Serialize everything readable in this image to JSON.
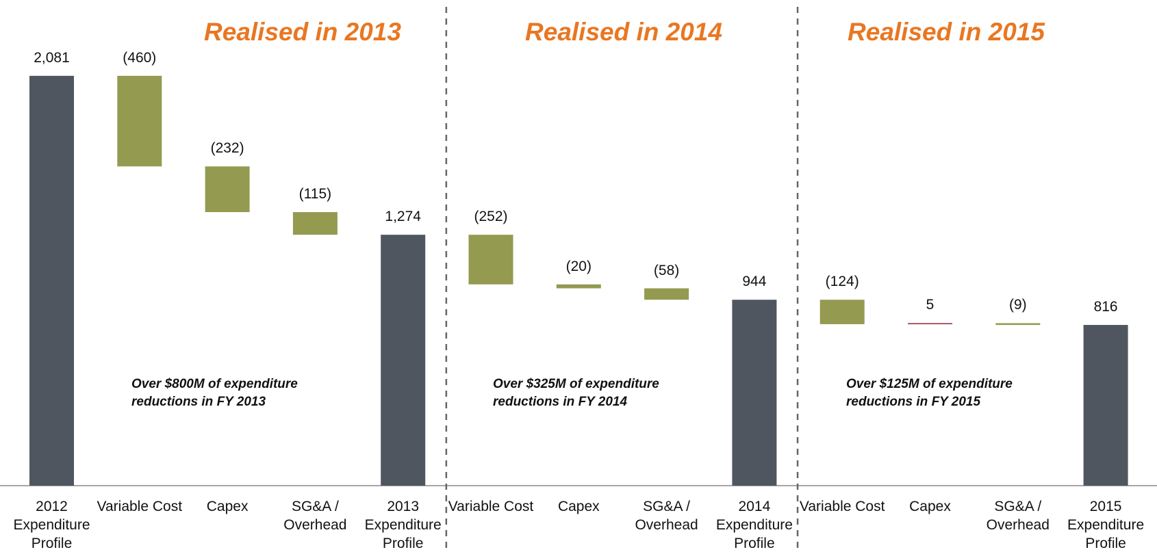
{
  "chart_data": {
    "type": "waterfall",
    "categories": [
      "2012 Expenditure Profile",
      "Variable Cost",
      "Capex",
      "SG&A / Overhead",
      "2013 Expenditure Profile",
      "Variable Cost",
      "Capex",
      "SG&A / Overhead",
      "2014 Expenditure Profile",
      "Variable Cost",
      "Capex",
      "SG&A / Overhead",
      "2015 Expenditure Profile"
    ],
    "values": [
      2081,
      -460,
      -232,
      -115,
      1274,
      -252,
      -20,
      -58,
      944,
      -124,
      5,
      -9,
      816
    ],
    "value_labels": [
      "2,081",
      "(460)",
      "(232)",
      "(115)",
      "1,274",
      "(252)",
      "(20)",
      "(58)",
      "944",
      "(124)",
      "5",
      "(9)",
      "816"
    ],
    "ylim": [
      0,
      2400
    ],
    "total_color": "#4f5660",
    "decrease_color": "#949a50",
    "increase_color": "#9b2335",
    "sections": [
      {
        "title": "Realised in 2013",
        "note": "Over $800M of expenditure reductions in FY 2013"
      },
      {
        "title": "Realised in 2014",
        "note": "Over $325M of expenditure reductions in FY 2014"
      },
      {
        "title": "Realised in 2015",
        "note": "Over $125M of expenditure reductions in FY 2015"
      }
    ]
  }
}
